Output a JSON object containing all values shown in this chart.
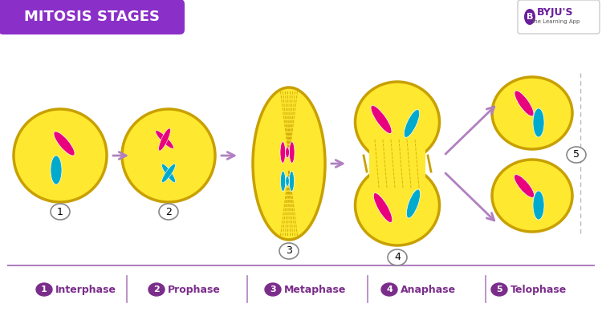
{
  "title": "MITOSIS STAGES",
  "title_bg_color": "#8B2FC9",
  "title_text_color": "#FFFFFF",
  "bg_color": "#FFFFFF",
  "cell_color": "#FFE830",
  "cell_edge_color": "#C8A000",
  "chromosome_pink": "#E8007D",
  "chromosome_blue": "#00AACC",
  "arrow_color": "#B080C0",
  "dashed_color": "#C8A000",
  "label_color": "#7B2D8B",
  "number_bg_color": "#7B2D8B",
  "number_text_color": "#FFFFFF",
  "stages": [
    "Interphase",
    "Prophase",
    "Metaphase",
    "Anaphase",
    "Telophase"
  ],
  "separator_color": "#B080C0",
  "footer_bg": "#FFFFFF",
  "byju_purple": "#6A1F9A"
}
